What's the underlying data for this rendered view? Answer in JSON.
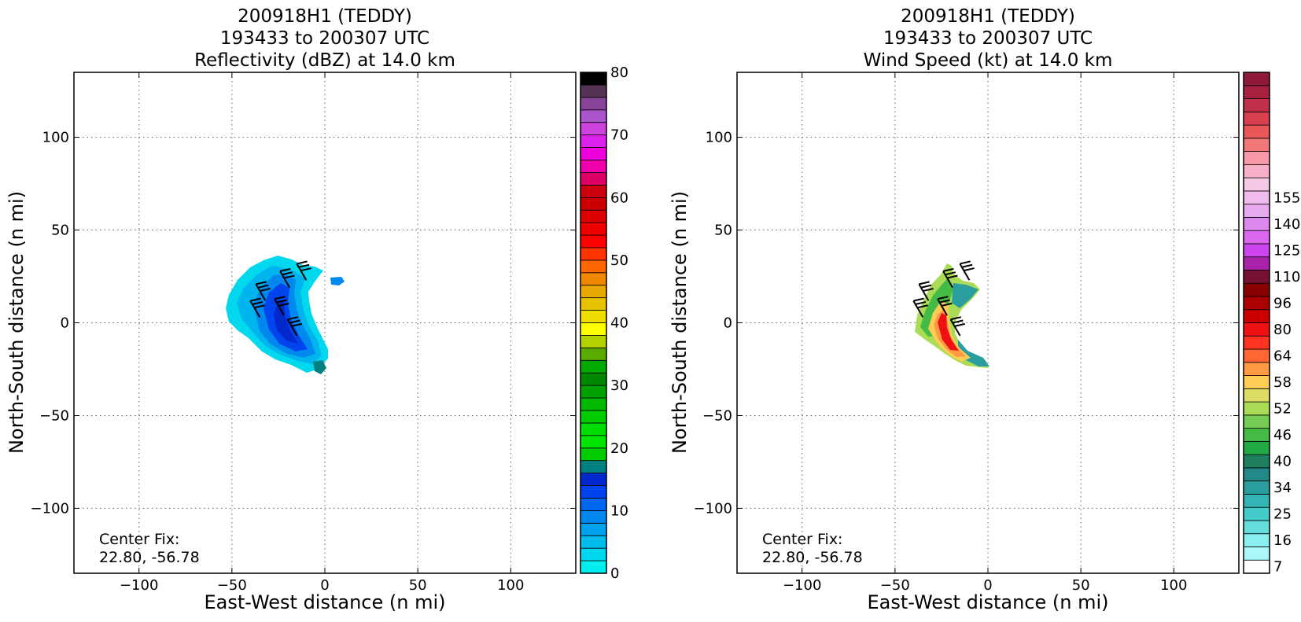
{
  "chart_data": [
    {
      "type": "heatmap",
      "title_lines": [
        "200918H1 (TEDDY)",
        "193433 to 200307 UTC",
        "Reflectivity (dBZ) at 14.0 km"
      ],
      "xlabel": "East-West distance (n mi)",
      "ylabel": "North-South distance (n mi)",
      "xlim": [
        -135,
        135
      ],
      "ylim": [
        -135,
        135
      ],
      "xticks": [
        -100,
        -50,
        0,
        50,
        100
      ],
      "yticks": [
        -100,
        -50,
        0,
        50,
        100
      ],
      "tick_labels_x": [
        "−100",
        "−50",
        "0",
        "50",
        "100"
      ],
      "tick_labels_y": [
        "−100",
        "−50",
        "0",
        "50",
        "100"
      ],
      "grid": true,
      "annotation_lines": [
        "Center Fix:",
        "22.80, -56.78"
      ],
      "colorbar": {
        "min": 0,
        "max": 80,
        "ticks": [
          0,
          10,
          20,
          30,
          40,
          50,
          60,
          70,
          80
        ],
        "colors": [
          "#00eeee",
          "#00d6ee",
          "#00bcee",
          "#00a2ee",
          "#0088ee",
          "#0066ee",
          "#0044ee",
          "#0028cc",
          "#008080",
          "#00cc00",
          "#00e600",
          "#00dd00",
          "#00cc00",
          "#00b800",
          "#00a000",
          "#008800",
          "#00aa00",
          "#5aaa00",
          "#b4d200",
          "#ffff00",
          "#eedd00",
          "#e8c400",
          "#e8aa00",
          "#f08800",
          "#ff6600",
          "#ff3300",
          "#ff0000",
          "#ee0000",
          "#dd0000",
          "#cc0000",
          "#cc0011",
          "#dd0066",
          "#ee00aa",
          "#ee00dd",
          "#dd22ee",
          "#cc44dd",
          "#aa55cc",
          "#884499",
          "#553355",
          "#000000"
        ]
      },
      "palette_echo": [
        "#00d8ee",
        "#00b4ee",
        "#0088ee",
        "#0044ee",
        "#0028cc",
        "#008080"
      ],
      "wind_barbs": [
        {
          "x": -32,
          "y": 12
        },
        {
          "x": -19,
          "y": 19
        },
        {
          "x": -10,
          "y": 23
        },
        {
          "x": -35,
          "y": 3
        },
        {
          "x": -22,
          "y": 4
        },
        {
          "x": -15,
          "y": -7
        }
      ]
    },
    {
      "type": "heatmap",
      "title_lines": [
        "200918H1 (TEDDY)",
        "193433 to 200307 UTC",
        "Wind Speed (kt) at 14.0 km"
      ],
      "xlabel": "East-West distance (n mi)",
      "ylabel": "North-South distance (n mi)",
      "xlim": [
        -135,
        135
      ],
      "ylim": [
        -135,
        135
      ],
      "xticks": [
        -100,
        -50,
        0,
        50,
        100
      ],
      "yticks": [
        -100,
        -50,
        0,
        50,
        100
      ],
      "tick_labels_x": [
        "−100",
        "−50",
        "0",
        "50",
        "100"
      ],
      "tick_labels_y": [
        "−100",
        "−50",
        "0",
        "50",
        "100"
      ],
      "grid": true,
      "annotation_lines": [
        "Center Fix:",
        "22.80, -56.78"
      ],
      "colorbar": {
        "tick_labels": [
          "7",
          "16",
          "25",
          "34",
          "40",
          "46",
          "52",
          "58",
          "64",
          "80",
          "96",
          "110",
          "125",
          "140",
          "155"
        ],
        "tick_steps": [
          0,
          2,
          4,
          6,
          8,
          10,
          12,
          14,
          16,
          18,
          20,
          22,
          24,
          26,
          28
        ],
        "colors": [
          "#ffffff",
          "#aaf8f8",
          "#88eeee",
          "#66dddd",
          "#44cccc",
          "#33b5b5",
          "#2a9e9e",
          "#228888",
          "#1f8060",
          "#22aa44",
          "#44bb44",
          "#77cc55",
          "#aadd55",
          "#dddd66",
          "#ffcc55",
          "#ff9944",
          "#ff6633",
          "#ff3322",
          "#ee1111",
          "#cc0000",
          "#aa0000",
          "#880000",
          "#771133",
          "#aa22aa",
          "#cc44ee",
          "#dd66ee",
          "#dd88ee",
          "#e8aaee",
          "#f2bbee",
          "#f5c8e5",
          "#f8b0c8",
          "#f898a8",
          "#f07878",
          "#e85858",
          "#d84050",
          "#c03048",
          "#a82040",
          "#901838"
        ]
      },
      "wind_barbs": [
        {
          "x": -32,
          "y": 12
        },
        {
          "x": -19,
          "y": 19
        },
        {
          "x": -10,
          "y": 23
        },
        {
          "x": -35,
          "y": 3
        },
        {
          "x": -22,
          "y": 4
        },
        {
          "x": -15,
          "y": -7
        }
      ]
    }
  ]
}
